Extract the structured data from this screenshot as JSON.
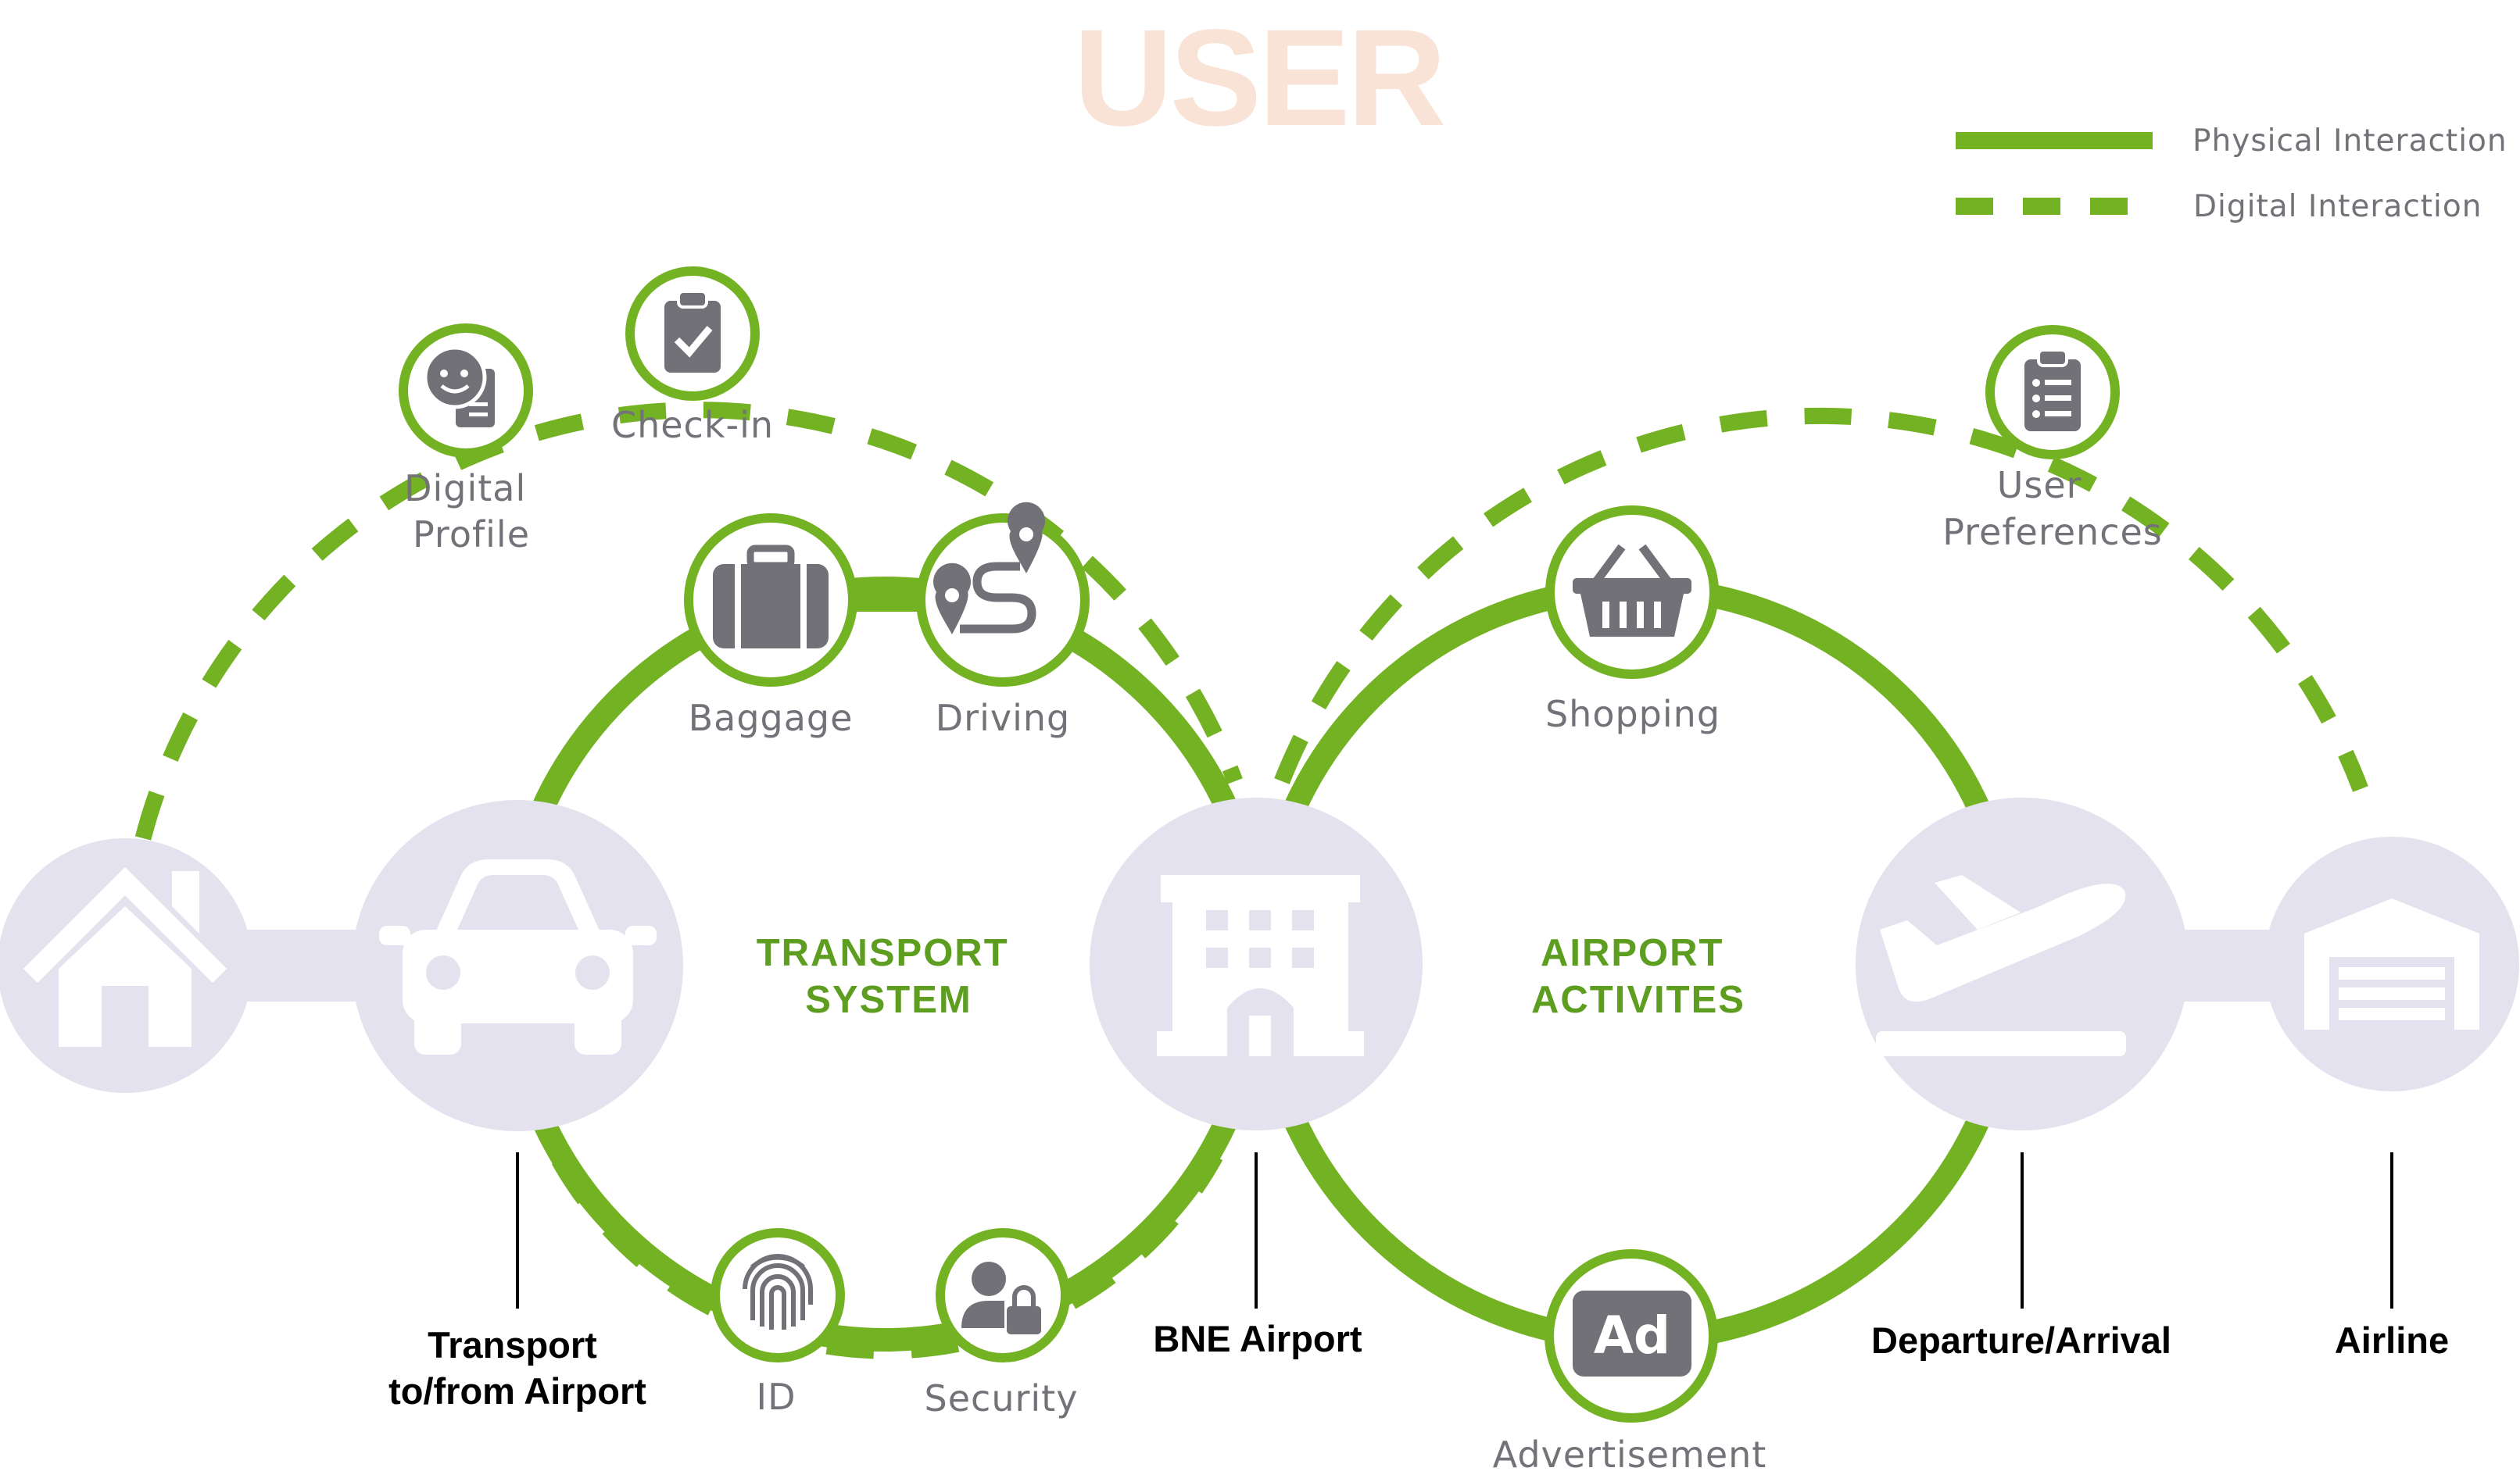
{
  "title": "USER",
  "legend": {
    "physical": "Physical Interaction",
    "digital": "Digital Interaction"
  },
  "colors": {
    "green": "#73b222",
    "hub_green": "#5d9d1f",
    "node_fill": "#e3e2ee",
    "icon_gray": "#727178",
    "title_peach": "#f9e2d6"
  },
  "hubs": {
    "transport": [
      "TRANSPORT",
      "SYSTEM"
    ],
    "airport": [
      "AIRPORT",
      "ACTIVITES"
    ]
  },
  "icons": {
    "digital_profile": {
      "icon": "digital-profile-icon",
      "label": [
        "Digital",
        "Profile"
      ]
    },
    "checkin": {
      "icon": "clipboard-check-icon",
      "label": [
        "Check-in"
      ]
    },
    "baggage": {
      "icon": "suitcase-icon",
      "label": [
        "Baggage"
      ]
    },
    "driving": {
      "icon": "route-icon",
      "label": [
        "Driving"
      ]
    },
    "id": {
      "icon": "fingerprint-icon",
      "label": [
        "ID"
      ]
    },
    "security": {
      "icon": "user-lock-icon",
      "label": [
        "Security"
      ]
    },
    "shopping": {
      "icon": "basket-icon",
      "label": [
        "Shopping"
      ]
    },
    "advertisement": {
      "icon": "ad-icon",
      "label": [
        "Advertisement"
      ]
    },
    "user_preferences": {
      "icon": "clipboard-list-icon",
      "label": [
        "User",
        "Preferences"
      ]
    }
  },
  "nodes": {
    "home": {
      "icon": "house-icon"
    },
    "car": {
      "icon": "car-icon",
      "label": [
        "Transport",
        "to/from Airport"
      ]
    },
    "airport": {
      "icon": "building-icon",
      "label": [
        "BNE Airport"
      ]
    },
    "plane": {
      "icon": "plane-departure-icon",
      "label": [
        "Departure/Arrival"
      ]
    },
    "airline": {
      "icon": "hangar-icon",
      "label": [
        "Airline"
      ]
    }
  }
}
